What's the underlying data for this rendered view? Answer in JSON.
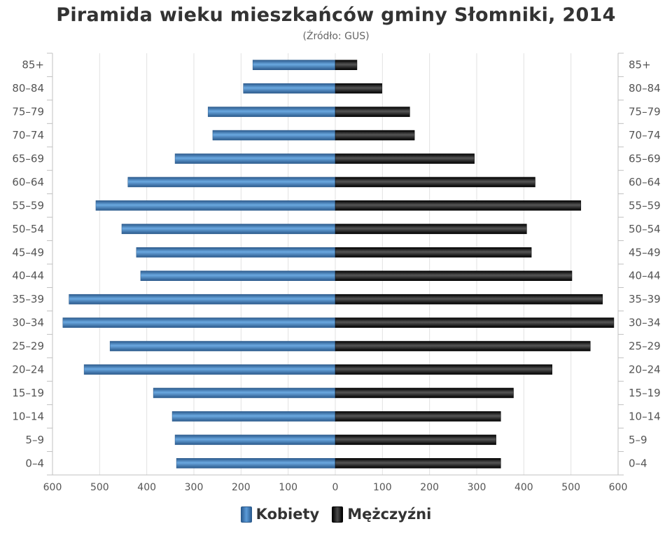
{
  "chart_data": {
    "type": "bar",
    "title": "Piramida wieku mieszkańców gminy Słomniki, 2014",
    "subtitle": "(Źródło: GUS)",
    "orientation": "horizontal-pyramid",
    "categories": [
      "85+",
      "80–84",
      "75–79",
      "70–74",
      "65–69",
      "60–64",
      "55–59",
      "50–54",
      "45–49",
      "40–44",
      "35–39",
      "30–34",
      "25–29",
      "20–24",
      "15–19",
      "10–14",
      "5–9",
      "0–4"
    ],
    "series": [
      {
        "name": "Kobiety",
        "color": "#4a86c5",
        "side": "left",
        "values": [
          175,
          195,
          270,
          260,
          340,
          440,
          508,
          453,
          422,
          413,
          565,
          578,
          478,
          533,
          386,
          346,
          340,
          337
        ]
      },
      {
        "name": "Mężczyźni",
        "color": "#111111",
        "side": "right",
        "values": [
          46,
          99,
          158,
          168,
          295,
          424,
          521,
          406,
          416,
          502,
          567,
          591,
          541,
          460,
          378,
          351,
          341,
          351
        ]
      }
    ],
    "xlim": [
      -600,
      600
    ],
    "x_ticks": [
      "600",
      "500",
      "400",
      "300",
      "200",
      "100",
      "0",
      "100",
      "200",
      "300",
      "400",
      "500",
      "600"
    ],
    "grid": true,
    "legend": "bottom-center"
  }
}
